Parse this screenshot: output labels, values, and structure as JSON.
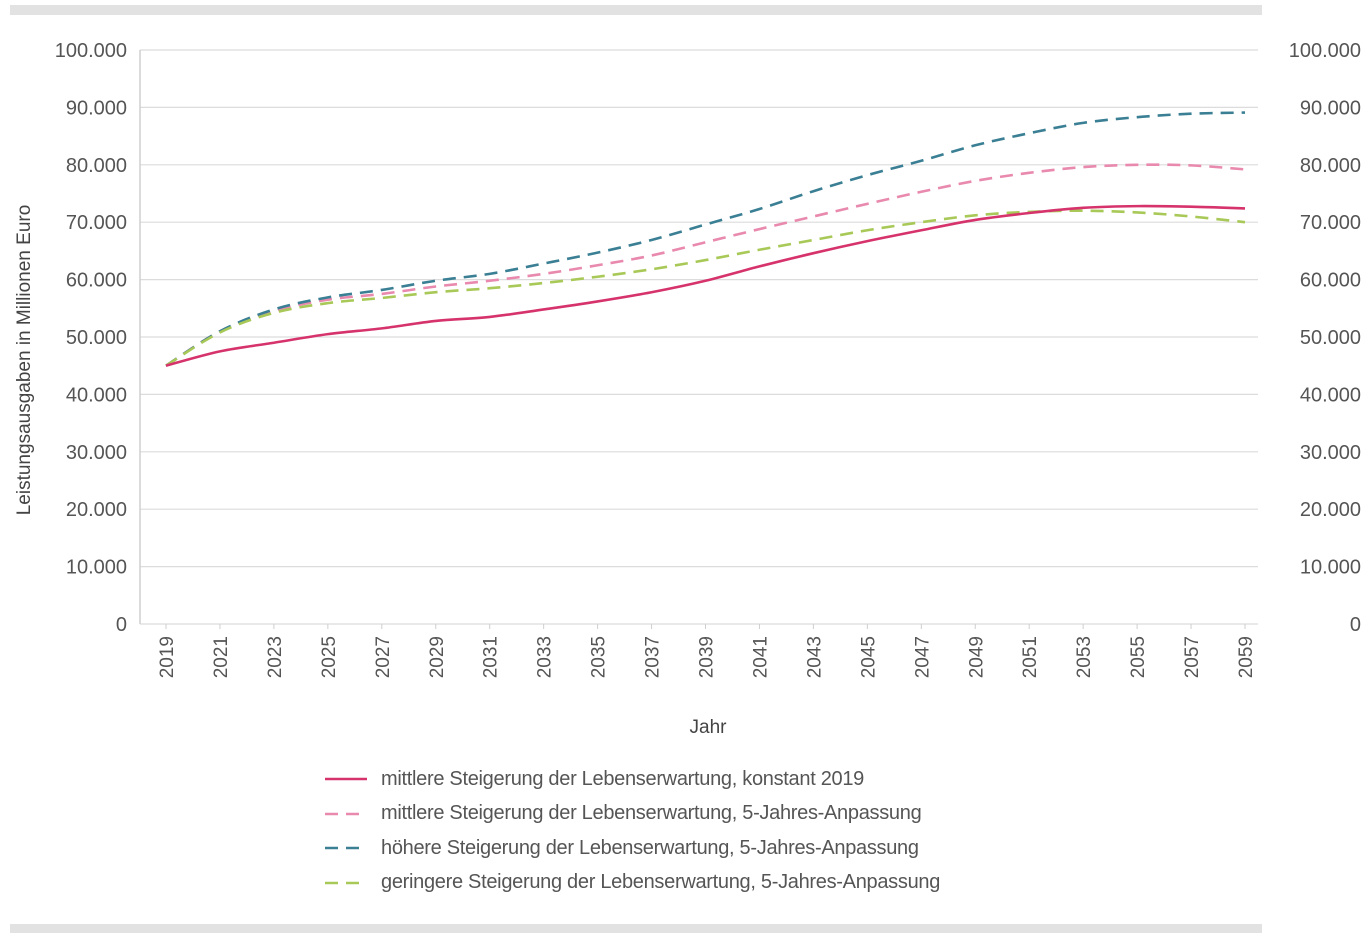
{
  "chart_data": {
    "type": "line",
    "title": "",
    "xlabel": "Jahr",
    "ylabel": "Leistungsausgaben in Millionen Euro",
    "ylim": [
      0,
      100000
    ],
    "yticks": [
      "0",
      "10.000",
      "20.000",
      "30.000",
      "40.000",
      "50.000",
      "60.000",
      "70.000",
      "80.000",
      "90.000",
      "100.000"
    ],
    "xticks": [
      "2019",
      "2021",
      "2023",
      "2025",
      "2027",
      "2029",
      "2031",
      "2033",
      "2035",
      "2037",
      "2039",
      "2041",
      "2043",
      "2045",
      "2047",
      "2049",
      "2051",
      "2053",
      "2055",
      "2057",
      "2059"
    ],
    "x": [
      2019,
      2021,
      2023,
      2025,
      2027,
      2029,
      2031,
      2033,
      2035,
      2037,
      2039,
      2041,
      2043,
      2045,
      2047,
      2049,
      2051,
      2053,
      2055,
      2057,
      2059
    ],
    "grid": true,
    "legend_position": "bottom",
    "series": [
      {
        "name": "mittlere Steigerung der Lebenserwartung, konstant 2019",
        "style": "solid",
        "color": "#d6336c",
        "values": [
          45000,
          47500,
          49000,
          50500,
          51500,
          52800,
          53500,
          54800,
          56200,
          57800,
          59800,
          62300,
          64600,
          66700,
          68600,
          70400,
          71600,
          72500,
          72800,
          72700,
          72400
        ]
      },
      {
        "name": "mittlere Steigerung der Lebenserwartung, 5-Jahres-Anpassung",
        "style": "dashed",
        "color": "#e889ad",
        "values": [
          45000,
          51000,
          54500,
          56500,
          57500,
          58800,
          59800,
          61000,
          62500,
          64200,
          66500,
          68800,
          71000,
          73200,
          75300,
          77200,
          78600,
          79600,
          80000,
          79900,
          79200
        ]
      },
      {
        "name": "höhere Steigerung der Lebenserwartung, 5-Jahres-Anpassung",
        "style": "dashed",
        "color": "#3a7f94",
        "values": [
          45000,
          51000,
          54800,
          56900,
          58200,
          59800,
          61000,
          62800,
          64700,
          66900,
          69600,
          72300,
          75400,
          78200,
          80700,
          83400,
          85500,
          87300,
          88300,
          88900,
          89100
        ]
      },
      {
        "name": "geringere Steigerung der Lebenserwartung, 5-Jahres-Anpassung",
        "style": "dashed",
        "color": "#a8c957",
        "values": [
          45000,
          50800,
          54200,
          55900,
          56800,
          57800,
          58500,
          59400,
          60500,
          61800,
          63400,
          65200,
          66900,
          68600,
          70000,
          71200,
          71800,
          72000,
          71700,
          71000,
          70000
        ]
      }
    ]
  }
}
